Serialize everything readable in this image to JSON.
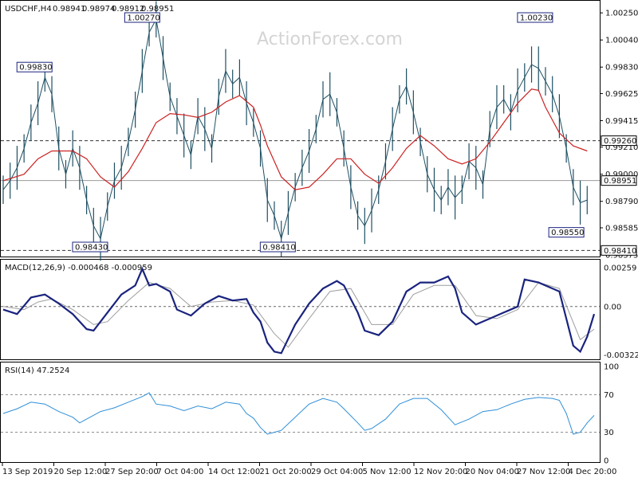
{
  "watermark": "ActionForex.com",
  "chart_data": [
    {
      "type": "line",
      "panel": "price",
      "header": {
        "symbol": "USDCHF,H4",
        "ohlc": [
          "0.98941",
          "0.98974",
          "0.98912",
          "0.98951"
        ]
      },
      "ylim": [
        0.98375,
        1.00325
      ],
      "y_ticks": [
        "1.00250",
        "1.00040",
        "0.99830",
        "0.99625",
        "0.99415",
        "0.99210",
        "0.99000",
        "0.98790",
        "0.98585",
        "0.98375"
      ],
      "x_ticks": [
        "13 Sep 2019",
        "20 Sep 12:00",
        "27 Sep 20:00",
        "7 Oct 04:00",
        "14 Oct 12:00",
        "21 Oct 20:00",
        "29 Oct 04:00",
        "5 Nov 12:00",
        "12 Nov 20:00",
        "20 Nov 04:00",
        "27 Nov 12:00",
        "4 Dec 20:00"
      ],
      "price_series": [
        [
          0,
          0.9888
        ],
        [
          2,
          0.9895
        ],
        [
          4,
          0.9905
        ],
        [
          6,
          0.992
        ],
        [
          8,
          0.994
        ],
        [
          10,
          0.9955
        ],
        [
          12,
          0.9975
        ],
        [
          14,
          0.9962
        ],
        [
          16,
          0.992
        ],
        [
          18,
          0.99
        ],
        [
          20,
          0.992
        ],
        [
          22,
          0.9905
        ],
        [
          24,
          0.988
        ],
        [
          26,
          0.986
        ],
        [
          28,
          0.985
        ],
        [
          30,
          0.9875
        ],
        [
          32,
          0.9895
        ],
        [
          34,
          0.9905
        ],
        [
          36,
          0.9925
        ],
        [
          38,
          0.995
        ],
        [
          40,
          0.998
        ],
        [
          42,
          1.001
        ],
        [
          44,
          1.002
        ],
        [
          46,
          0.999
        ],
        [
          48,
          0.996
        ],
        [
          50,
          0.9945
        ],
        [
          52,
          0.993
        ],
        [
          54,
          0.9915
        ],
        [
          56,
          0.9945
        ],
        [
          58,
          0.9935
        ],
        [
          60,
          0.992
        ],
        [
          62,
          0.996
        ],
        [
          64,
          0.998
        ],
        [
          66,
          0.997
        ],
        [
          68,
          0.9975
        ],
        [
          70,
          0.9955
        ],
        [
          72,
          0.994
        ],
        [
          74,
          0.992
        ],
        [
          76,
          0.988
        ],
        [
          78,
          0.9868
        ],
        [
          80,
          0.985
        ],
        [
          82,
          0.987
        ],
        [
          84,
          0.989
        ],
        [
          86,
          0.9905
        ],
        [
          88,
          0.9918
        ],
        [
          90,
          0.9935
        ],
        [
          92,
          0.9958
        ],
        [
          94,
          0.9962
        ],
        [
          96,
          0.9948
        ],
        [
          98,
          0.992
        ],
        [
          100,
          0.989
        ],
        [
          102,
          0.9868
        ],
        [
          104,
          0.986
        ],
        [
          106,
          0.9872
        ],
        [
          108,
          0.9888
        ],
        [
          110,
          0.991
        ],
        [
          112,
          0.9935
        ],
        [
          114,
          0.9958
        ],
        [
          116,
          0.9968
        ],
        [
          118,
          0.9948
        ],
        [
          120,
          0.9925
        ],
        [
          122,
          0.99
        ],
        [
          124,
          0.9888
        ],
        [
          126,
          0.988
        ],
        [
          128,
          0.989
        ],
        [
          130,
          0.9882
        ],
        [
          132,
          0.9888
        ],
        [
          134,
          0.991
        ],
        [
          136,
          0.9905
        ],
        [
          138,
          0.9892
        ],
        [
          140,
          0.9935
        ],
        [
          142,
          0.9952
        ],
        [
          144,
          0.9958
        ],
        [
          146,
          0.9948
        ],
        [
          148,
          0.9965
        ],
        [
          150,
          0.9975
        ],
        [
          152,
          0.9985
        ],
        [
          154,
          0.9982
        ],
        [
          156,
          0.9972
        ],
        [
          158,
          0.9962
        ],
        [
          160,
          0.9945
        ],
        [
          162,
          0.992
        ],
        [
          164,
          0.989
        ],
        [
          166,
          0.9878
        ],
        [
          168,
          0.988
        ]
      ],
      "ma_series": [
        [
          0,
          0.9895
        ],
        [
          6,
          0.99
        ],
        [
          10,
          0.9912
        ],
        [
          14,
          0.9918
        ],
        [
          20,
          0.9918
        ],
        [
          24,
          0.9912
        ],
        [
          28,
          0.9898
        ],
        [
          32,
          0.989
        ],
        [
          36,
          0.9902
        ],
        [
          40,
          0.992
        ],
        [
          44,
          0.994
        ],
        [
          48,
          0.9947
        ],
        [
          52,
          0.9946
        ],
        [
          56,
          0.9944
        ],
        [
          60,
          0.9948
        ],
        [
          64,
          0.9956
        ],
        [
          68,
          0.9961
        ],
        [
          72,
          0.9952
        ],
        [
          74,
          0.9938
        ],
        [
          76,
          0.9922
        ],
        [
          80,
          0.9898
        ],
        [
          84,
          0.9888
        ],
        [
          88,
          0.989
        ],
        [
          92,
          0.99
        ],
        [
          96,
          0.9912
        ],
        [
          100,
          0.9912
        ],
        [
          104,
          0.99
        ],
        [
          108,
          0.9893
        ],
        [
          112,
          0.9905
        ],
        [
          116,
          0.992
        ],
        [
          120,
          0.993
        ],
        [
          124,
          0.9922
        ],
        [
          128,
          0.9912
        ],
        [
          132,
          0.9908
        ],
        [
          136,
          0.9912
        ],
        [
          140,
          0.9925
        ],
        [
          144,
          0.994
        ],
        [
          148,
          0.9955
        ],
        [
          152,
          0.9966
        ],
        [
          154,
          0.9965
        ],
        [
          156,
          0.9952
        ],
        [
          160,
          0.9932
        ],
        [
          164,
          0.9922
        ],
        [
          168,
          0.9918
        ]
      ],
      "hlines": [
        {
          "value": 0.9926,
          "label": "0.99260",
          "style": "dashed"
        },
        {
          "value": 0.98951,
          "label": "0.98951",
          "style": "solid"
        },
        {
          "value": 0.9841,
          "label": "0.98410",
          "style": "dashed"
        }
      ],
      "annotations": [
        {
          "label": "0.99830",
          "x": 9,
          "value": 0.9983
        },
        {
          "label": "1.00270",
          "x": 40,
          "value": 1.0027
        },
        {
          "label": "0.98430",
          "x": 25,
          "value": 0.9843
        },
        {
          "label": "0.98410",
          "x": 79,
          "value": 0.9841
        },
        {
          "label": "1.00230",
          "x": 153,
          "value": 1.0023
        },
        {
          "label": "0.98550",
          "x": 162,
          "value": 0.9855
        }
      ],
      "x_range": [
        0,
        170
      ]
    },
    {
      "type": "line",
      "panel": "macd",
      "title": "MACD(12,26,9) -0.000468 -0.000959",
      "ylim": [
        -0.0034,
        0.0029
      ],
      "y_ticks": [
        {
          "label": "0.00259",
          "value": 0.00259
        },
        {
          "label": "0.00",
          "value": 0.0
        },
        {
          "label": "-0.003221",
          "value": -0.003221
        }
      ],
      "zero_line_label": "0.00",
      "macd_series": [
        [
          0,
          -0.0002
        ],
        [
          4,
          -0.0005
        ],
        [
          8,
          0.0006
        ],
        [
          12,
          0.0008
        ],
        [
          16,
          0.0002
        ],
        [
          20,
          -0.0005
        ],
        [
          24,
          -0.0015
        ],
        [
          26,
          -0.0016
        ],
        [
          30,
          -0.0004
        ],
        [
          34,
          0.0008
        ],
        [
          38,
          0.0014
        ],
        [
          40,
          0.0025
        ],
        [
          42,
          0.0014
        ],
        [
          44,
          0.0015
        ],
        [
          48,
          0.001
        ],
        [
          50,
          -0.0002
        ],
        [
          54,
          -0.0006
        ],
        [
          58,
          0.0002
        ],
        [
          62,
          0.0007
        ],
        [
          66,
          0.0004
        ],
        [
          70,
          0.0005
        ],
        [
          72,
          -0.0004
        ],
        [
          74,
          -0.001
        ],
        [
          76,
          -0.0024
        ],
        [
          78,
          -0.003
        ],
        [
          80,
          -0.0031
        ],
        [
          84,
          -0.0012
        ],
        [
          88,
          0.0002
        ],
        [
          92,
          0.0012
        ],
        [
          96,
          0.0017
        ],
        [
          98,
          0.0014
        ],
        [
          102,
          -0.0004
        ],
        [
          104,
          -0.0016
        ],
        [
          108,
          -0.0019
        ],
        [
          112,
          -0.001
        ],
        [
          116,
          0.001
        ],
        [
          120,
          0.0016
        ],
        [
          124,
          0.0016
        ],
        [
          128,
          0.002
        ],
        [
          130,
          0.0012
        ],
        [
          132,
          -0.0004
        ],
        [
          136,
          -0.0012
        ],
        [
          140,
          -0.0008
        ],
        [
          144,
          -0.0004
        ],
        [
          148,
          0.0
        ],
        [
          150,
          0.0018
        ],
        [
          154,
          0.0016
        ],
        [
          158,
          0.0012
        ],
        [
          160,
          0.001
        ],
        [
          162,
          -0.0008
        ],
        [
          164,
          -0.0026
        ],
        [
          166,
          -0.003
        ],
        [
          168,
          -0.002
        ],
        [
          170,
          -0.0005
        ]
      ],
      "signal_series": [
        [
          0,
          0.0
        ],
        [
          6,
          -0.0002
        ],
        [
          10,
          0.0003
        ],
        [
          14,
          0.0005
        ],
        [
          20,
          -0.0002
        ],
        [
          26,
          -0.0012
        ],
        [
          30,
          -0.001
        ],
        [
          36,
          0.0004
        ],
        [
          42,
          0.0016
        ],
        [
          48,
          0.0012
        ],
        [
          54,
          0.0
        ],
        [
          60,
          0.0003
        ],
        [
          66,
          0.0004
        ],
        [
          72,
          0.0001
        ],
        [
          78,
          -0.0018
        ],
        [
          82,
          -0.0027
        ],
        [
          88,
          -0.0008
        ],
        [
          94,
          0.001
        ],
        [
          100,
          0.0012
        ],
        [
          106,
          -0.0012
        ],
        [
          112,
          -0.0012
        ],
        [
          118,
          0.0008
        ],
        [
          124,
          0.0014
        ],
        [
          130,
          0.0014
        ],
        [
          136,
          -0.0006
        ],
        [
          142,
          -0.0008
        ],
        [
          148,
          -0.0002
        ],
        [
          154,
          0.0016
        ],
        [
          160,
          0.0012
        ],
        [
          166,
          -0.0022
        ],
        [
          170,
          -0.0015
        ]
      ],
      "x_range": [
        0,
        170
      ]
    },
    {
      "type": "line",
      "panel": "rsi",
      "title": "RSI(14) 47.2524",
      "ylim": [
        0,
        100
      ],
      "y_ticks": [
        {
          "label": "100",
          "value": 100
        },
        {
          "label": "70",
          "value": 70
        },
        {
          "label": "30",
          "value": 30
        },
        {
          "label": "0",
          "value": 0
        }
      ],
      "rsi_series": [
        [
          0,
          50
        ],
        [
          4,
          55
        ],
        [
          8,
          62
        ],
        [
          12,
          60
        ],
        [
          16,
          52
        ],
        [
          20,
          46
        ],
        [
          22,
          40
        ],
        [
          24,
          44
        ],
        [
          28,
          52
        ],
        [
          32,
          56
        ],
        [
          36,
          62
        ],
        [
          40,
          68
        ],
        [
          42,
          72
        ],
        [
          44,
          60
        ],
        [
          48,
          58
        ],
        [
          52,
          53
        ],
        [
          56,
          58
        ],
        [
          60,
          55
        ],
        [
          64,
          62
        ],
        [
          68,
          60
        ],
        [
          70,
          50
        ],
        [
          72,
          45
        ],
        [
          74,
          35
        ],
        [
          76,
          28
        ],
        [
          78,
          30
        ],
        [
          80,
          32
        ],
        [
          84,
          46
        ],
        [
          88,
          60
        ],
        [
          92,
          66
        ],
        [
          96,
          62
        ],
        [
          98,
          55
        ],
        [
          102,
          40
        ],
        [
          104,
          32
        ],
        [
          106,
          34
        ],
        [
          110,
          44
        ],
        [
          114,
          60
        ],
        [
          118,
          66
        ],
        [
          122,
          66
        ],
        [
          126,
          54
        ],
        [
          128,
          46
        ],
        [
          130,
          38
        ],
        [
          134,
          44
        ],
        [
          138,
          52
        ],
        [
          142,
          54
        ],
        [
          146,
          60
        ],
        [
          150,
          65
        ],
        [
          154,
          67
        ],
        [
          158,
          66
        ],
        [
          160,
          64
        ],
        [
          162,
          50
        ],
        [
          164,
          28
        ],
        [
          166,
          30
        ],
        [
          168,
          40
        ],
        [
          170,
          48
        ]
      ],
      "x_range": [
        0,
        170
      ]
    }
  ]
}
